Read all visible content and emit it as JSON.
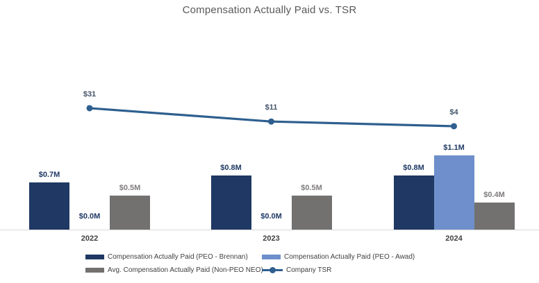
{
  "chart_data": {
    "type": "combo-bar-line",
    "title": "Compensation Actually Paid vs. TSR",
    "categories": [
      "2022",
      "2023",
      "2024"
    ],
    "series": [
      {
        "name": "Compensation Actually Paid (PEO - Brennan)",
        "type": "bar",
        "color": "#1F3864",
        "label_color": "#1F3864",
        "values": [
          0.7,
          0.8,
          0.8
        ],
        "labels": [
          "$0.7M",
          "$0.8M",
          "$0.8M"
        ]
      },
      {
        "name": "Compensation Actually Paid (PEO - Awad)",
        "type": "bar",
        "color": "#6E8FCB",
        "label_color": "#1F3864",
        "values": [
          0.0,
          0.0,
          1.1
        ],
        "labels": [
          "$0.0M",
          "$0.0M",
          "$1.1M"
        ]
      },
      {
        "name": "Avg. Compensation Actually Paid (Non-PEO NEO)",
        "type": "bar",
        "color": "#737070",
        "label_color": "#7F7B7B",
        "values": [
          0.5,
          0.5,
          0.4
        ],
        "labels": [
          "$0.5M",
          "$0.5M",
          "$0.4M"
        ]
      },
      {
        "name": "Company TSR",
        "type": "line",
        "color": "#2E5F8F",
        "label_color": "#44546A",
        "values": [
          31,
          11,
          4
        ],
        "labels": [
          "$31",
          "$11",
          "$4"
        ]
      }
    ],
    "ylabel": "",
    "xlabel": "",
    "grid": false,
    "y_axis_visible": false,
    "legend_position": "bottom",
    "axis_line_color": "#d9d9d9",
    "title_color": "#595959"
  }
}
